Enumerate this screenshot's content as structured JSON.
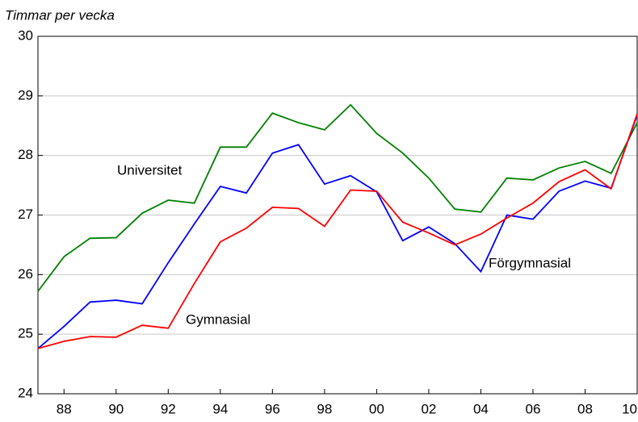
{
  "chart_data": {
    "type": "line",
    "y_label": "Timmar per vecka",
    "x": [
      1987,
      1988,
      1989,
      1990,
      1991,
      1992,
      1993,
      1994,
      1995,
      1996,
      1997,
      1998,
      1999,
      2000,
      2001,
      2002,
      2003,
      2004,
      2005,
      2006,
      2007,
      2008,
      2009,
      2010
    ],
    "series": [
      {
        "name": "Universitet",
        "color": "#008000",
        "values": [
          25.72,
          26.3,
          26.61,
          26.62,
          27.03,
          27.25,
          27.2,
          28.14,
          28.14,
          28.71,
          28.55,
          28.43,
          28.85,
          28.37,
          28.04,
          27.62,
          27.1,
          27.05,
          27.62,
          27.59,
          27.79,
          27.9,
          27.7,
          28.55
        ]
      },
      {
        "name": "Förgymnasial",
        "color": "#0000ff",
        "values": [
          24.76,
          25.13,
          25.54,
          25.57,
          25.51,
          26.2,
          26.85,
          27.48,
          27.37,
          28.04,
          28.18,
          27.52,
          27.66,
          27.39,
          26.57,
          26.8,
          26.52,
          26.05,
          27.0,
          26.93,
          27.4,
          27.57,
          27.45,
          28.68
        ]
      },
      {
        "name": "Gymnasial",
        "color": "#ff0000",
        "values": [
          24.76,
          24.88,
          24.96,
          24.95,
          25.15,
          25.1,
          25.85,
          26.55,
          26.78,
          27.13,
          27.11,
          26.81,
          27.42,
          27.4,
          26.88,
          26.7,
          26.5,
          26.68,
          26.95,
          27.2,
          27.56,
          27.76,
          27.44,
          28.7
        ]
      }
    ],
    "xlim": [
      1987,
      2010
    ],
    "xticks": [
      {
        "value": 1988,
        "label": "88"
      },
      {
        "value": 1990,
        "label": "90"
      },
      {
        "value": 1992,
        "label": "92"
      },
      {
        "value": 1994,
        "label": "94"
      },
      {
        "value": 1996,
        "label": "96"
      },
      {
        "value": 1998,
        "label": "98"
      },
      {
        "value": 2000,
        "label": "00"
      },
      {
        "value": 2002,
        "label": "02"
      },
      {
        "value": 2004,
        "label": "04"
      },
      {
        "value": 2006,
        "label": "06"
      },
      {
        "value": 2008,
        "label": "08"
      },
      {
        "value": 2010,
        "label": "10"
      }
    ],
    "ylim": [
      24,
      30
    ],
    "yticks": [
      24,
      25,
      26,
      27,
      28,
      29,
      30
    ],
    "grid": true
  }
}
